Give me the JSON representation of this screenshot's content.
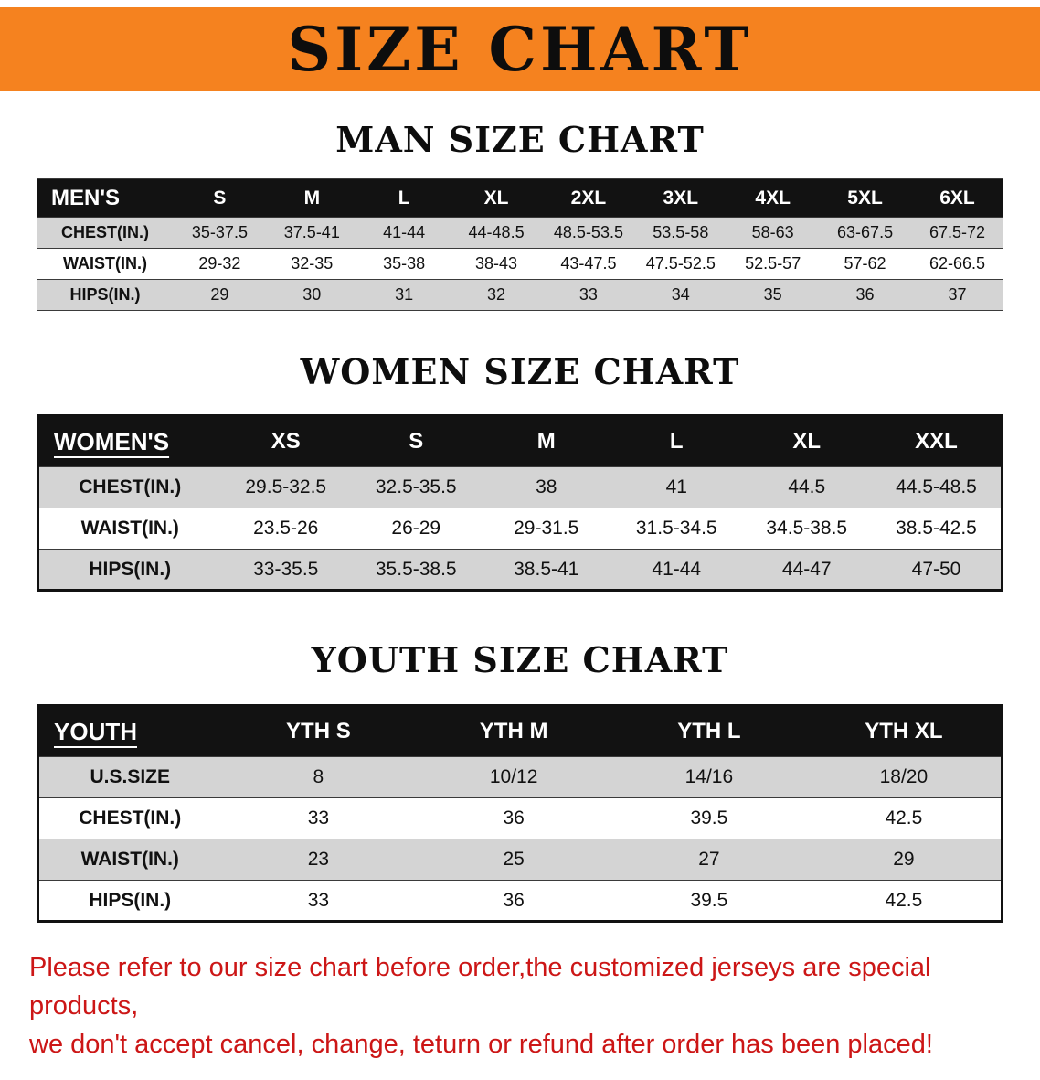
{
  "banner": {
    "title": "SIZE CHART"
  },
  "colors": {
    "banner_orange": "#f5821f",
    "header_black": "#121212",
    "row_gray": "#d4d4d4",
    "note_red": "#cc1616"
  },
  "sections": [
    {
      "heading": "MAN SIZE CHART",
      "table": {
        "header": [
          "MEN'S",
          "S",
          "M",
          "L",
          "XL",
          "2XL",
          "3XL",
          "4XL",
          "5XL",
          "6XL"
        ],
        "rows": [
          {
            "label": "CHEST(IN.)",
            "values": [
              "35-37.5",
              "37.5-41",
              "41-44",
              "44-48.5",
              "48.5-53.5",
              "53.5-58",
              "58-63",
              "63-67.5",
              "67.5-72"
            ]
          },
          {
            "label": "WAIST(IN.)",
            "values": [
              "29-32",
              "32-35",
              "35-38",
              "38-43",
              "43-47.5",
              "47.5-52.5",
              "52.5-57",
              "57-62",
              "62-66.5"
            ]
          },
          {
            "label": "HIPS(IN.)",
            "values": [
              "29",
              "30",
              "31",
              "32",
              "33",
              "34",
              "35",
              "36",
              "37"
            ]
          }
        ]
      }
    },
    {
      "heading": "WOMEN SIZE CHART",
      "table": {
        "header": [
          "WOMEN'S",
          "XS",
          "S",
          "M",
          "L",
          "XL",
          "XXL"
        ],
        "rows": [
          {
            "label": "CHEST(IN.)",
            "values": [
              "29.5-32.5",
              "32.5-35.5",
              "38",
              "41",
              "44.5",
              "44.5-48.5"
            ]
          },
          {
            "label": "WAIST(IN.)",
            "values": [
              "23.5-26",
              "26-29",
              "29-31.5",
              "31.5-34.5",
              "34.5-38.5",
              "38.5-42.5"
            ]
          },
          {
            "label": "HIPS(IN.)",
            "values": [
              "33-35.5",
              "35.5-38.5",
              "38.5-41",
              "41-44",
              "44-47",
              "47-50"
            ]
          }
        ]
      }
    },
    {
      "heading": "YOUTH SIZE CHART",
      "table": {
        "header": [
          "YOUTH",
          "YTH S",
          "YTH M",
          "YTH L",
          "YTH XL"
        ],
        "rows": [
          {
            "label": "U.S.SIZE",
            "values": [
              "8",
              "10/12",
              "14/16",
              "18/20"
            ]
          },
          {
            "label": "CHEST(IN.)",
            "values": [
              "33",
              "36",
              "39.5",
              "42.5"
            ]
          },
          {
            "label": "WAIST(IN.)",
            "values": [
              "23",
              "25",
              "27",
              "29"
            ]
          },
          {
            "label": "HIPS(IN.)",
            "values": [
              "33",
              "36",
              "39.5",
              "42.5"
            ]
          }
        ]
      }
    }
  ],
  "footer": {
    "line1": "Please refer to our size chart before order,the customized jerseys are special products,",
    "line2": "we don't accept cancel, change, teturn or refund after order has been placed!"
  }
}
